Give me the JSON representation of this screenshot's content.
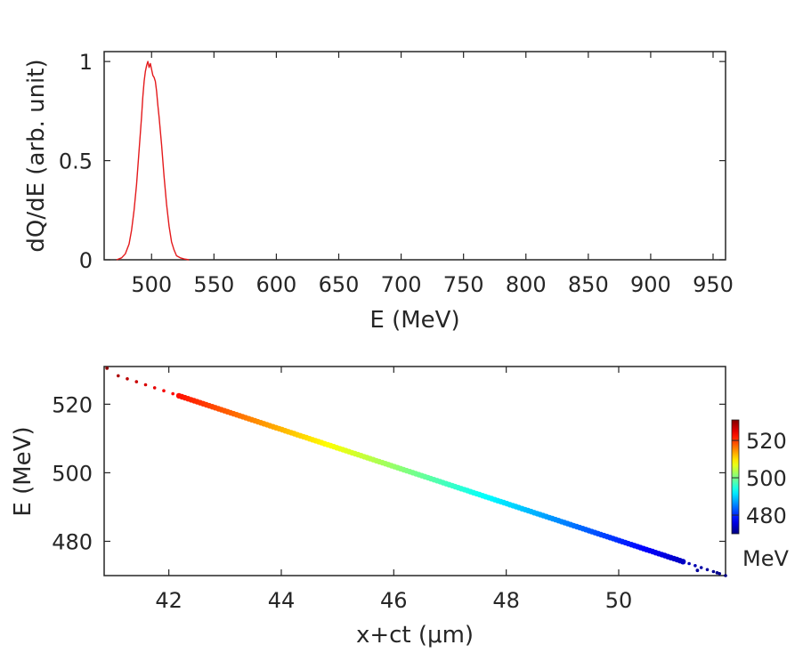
{
  "chart_data": [
    {
      "type": "line",
      "xlabel": "E (MeV)",
      "ylabel": "dQ/dE (arb. unit)",
      "xlim": [
        462,
        960
      ],
      "ylim": [
        0,
        1.05
      ],
      "xticks": [
        500,
        550,
        600,
        650,
        700,
        750,
        800,
        850,
        900,
        950
      ],
      "yticks": [
        0,
        0.5,
        1
      ],
      "ytick_labels": [
        "0",
        "0.5",
        "1"
      ],
      "grid": false,
      "series": [
        {
          "color": "#e41a1c",
          "x": [
            472,
            476,
            479,
            482,
            484,
            486,
            488,
            490,
            492,
            493,
            494,
            495,
            496,
            497,
            498,
            499,
            500,
            501,
            502,
            503,
            504,
            505,
            506,
            508,
            510,
            512,
            514,
            516,
            518,
            520,
            523,
            526,
            530
          ],
          "y": [
            0,
            0.01,
            0.03,
            0.08,
            0.15,
            0.25,
            0.38,
            0.55,
            0.72,
            0.82,
            0.9,
            0.95,
            0.98,
            1.0,
            0.97,
            0.99,
            0.96,
            0.93,
            0.92,
            0.9,
            0.85,
            0.78,
            0.72,
            0.58,
            0.42,
            0.28,
            0.17,
            0.09,
            0.05,
            0.02,
            0.01,
            0.004,
            0
          ]
        }
      ]
    },
    {
      "type": "scatter",
      "xlabel": "x+ct (μm)",
      "ylabel": "E (MeV)",
      "xlim": [
        40.85,
        51.9
      ],
      "ylim": [
        470,
        531
      ],
      "xticks": [
        42,
        44,
        46,
        48,
        50
      ],
      "yticks": [
        480,
        500,
        520
      ],
      "grid": false,
      "line": {
        "x_start": 41.1,
        "x_end": 51.9,
        "e_start": 528.3,
        "e_end": 470
      },
      "outliers": [
        {
          "x": 40.9,
          "y": 530.5
        },
        {
          "x": 51.4,
          "y": 471.5
        },
        {
          "x": 51.75,
          "y": 470.8
        }
      ],
      "colorbar": {
        "label": "MeV",
        "ticks": [
          480,
          500,
          520
        ],
        "range": [
          470,
          531
        ],
        "colormap": "jet"
      }
    }
  ]
}
